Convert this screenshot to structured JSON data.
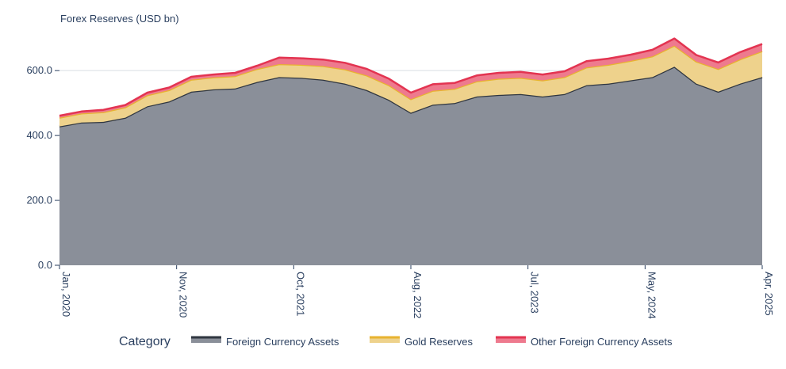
{
  "chart_data": {
    "type": "area",
    "stacked": true,
    "ylabel": "Forex Reserves (USD bn)",
    "xlabel": "",
    "ylim": [
      0,
      720
    ],
    "yticks": [
      0,
      200,
      400,
      600
    ],
    "ytick_labels": [
      "0.0",
      "200.0",
      "400.0",
      "600.0"
    ],
    "xtick_labels": [
      "Jan, 2020",
      "Nov, 2020",
      "Oct, 2021",
      "Aug, 2022",
      "Jul, 2023",
      "May, 2024",
      "Apr, 2025"
    ],
    "x": [
      "2020-01",
      "2020-03",
      "2020-05",
      "2020-07",
      "2020-09",
      "2020-11",
      "2021-01",
      "2021-03",
      "2021-05",
      "2021-07",
      "2021-09",
      "2021-11",
      "2022-01",
      "2022-03",
      "2022-05",
      "2022-07",
      "2022-09",
      "2022-11",
      "2023-01",
      "2023-03",
      "2023-05",
      "2023-07",
      "2023-09",
      "2023-11",
      "2024-01",
      "2024-03",
      "2024-05",
      "2024-07",
      "2024-09",
      "2024-11",
      "2025-01",
      "2025-03",
      "2025-04"
    ],
    "grid": true,
    "legend": {
      "title": "Category",
      "placement": "bottom"
    },
    "series": [
      {
        "name": "Foreign Currency Assets",
        "color": "#2f3640",
        "fill": "#8a8f99",
        "values": [
          428,
          440,
          442,
          455,
          490,
          505,
          535,
          542,
          545,
          565,
          580,
          578,
          572,
          560,
          540,
          510,
          470,
          495,
          500,
          520,
          525,
          528,
          520,
          528,
          555,
          560,
          570,
          580,
          612,
          560,
          535,
          560,
          580
        ]
      },
      {
        "name": "Gold Reserves",
        "color": "#e8b32f",
        "fill": "#eed28c",
        "values": [
          27,
          28,
          30,
          32,
          34,
          35,
          37,
          37,
          38,
          40,
          40,
          40,
          42,
          44,
          45,
          45,
          42,
          43,
          44,
          47,
          50,
          50,
          50,
          52,
          55,
          58,
          60,
          64,
          65,
          68,
          70,
          75,
          80
        ]
      },
      {
        "name": "Other Foreign Currency Assets",
        "color": "#e33451",
        "fill": "#ee7a8e",
        "values": [
          6,
          6,
          7,
          7,
          8,
          8,
          9,
          9,
          10,
          10,
          20,
          20,
          20,
          20,
          20,
          20,
          20,
          20,
          18,
          18,
          18,
          18,
          18,
          18,
          19,
          19,
          19,
          20,
          22,
          20,
          20,
          22,
          22
        ]
      }
    ]
  }
}
